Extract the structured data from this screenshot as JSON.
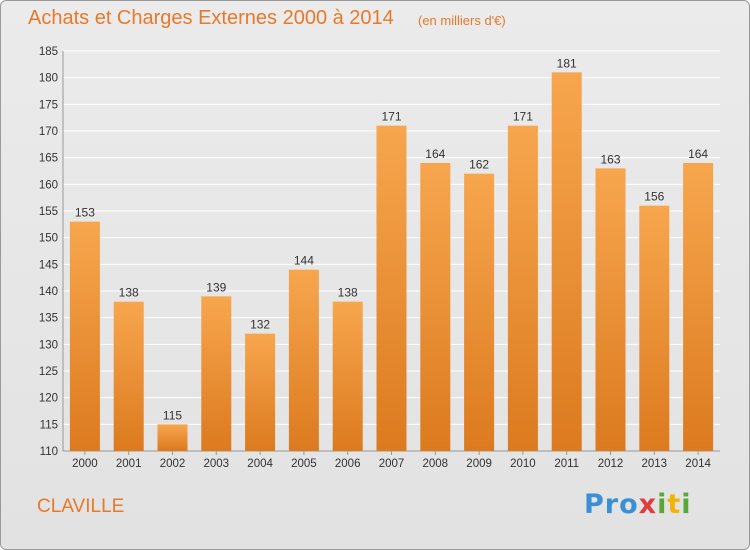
{
  "title": "Achats et Charges Externes 2000 à 2014",
  "subtitle": "(en milliers d'€)",
  "commune": "CLAVILLE",
  "logo": [
    "Pro",
    "x",
    "i",
    "t",
    "i"
  ],
  "colors": {
    "accent": "#e8792a",
    "bar_top": "#f7a64e",
    "bar_bottom": "#dc7a1f",
    "grid": "#ffffff"
  },
  "chart_data": {
    "type": "bar",
    "categories": [
      "2000",
      "2001",
      "2002",
      "2003",
      "2004",
      "2005",
      "2006",
      "2007",
      "2008",
      "2009",
      "2010",
      "2011",
      "2012",
      "2013",
      "2014"
    ],
    "values": [
      153,
      138,
      115,
      139,
      132,
      144,
      138,
      171,
      164,
      162,
      171,
      181,
      163,
      156,
      164
    ],
    "ylim": [
      110,
      185
    ],
    "yticks": [
      110,
      115,
      120,
      125,
      130,
      135,
      140,
      145,
      150,
      155,
      160,
      165,
      170,
      175,
      180,
      185
    ],
    "grid": true,
    "legend": "none"
  }
}
